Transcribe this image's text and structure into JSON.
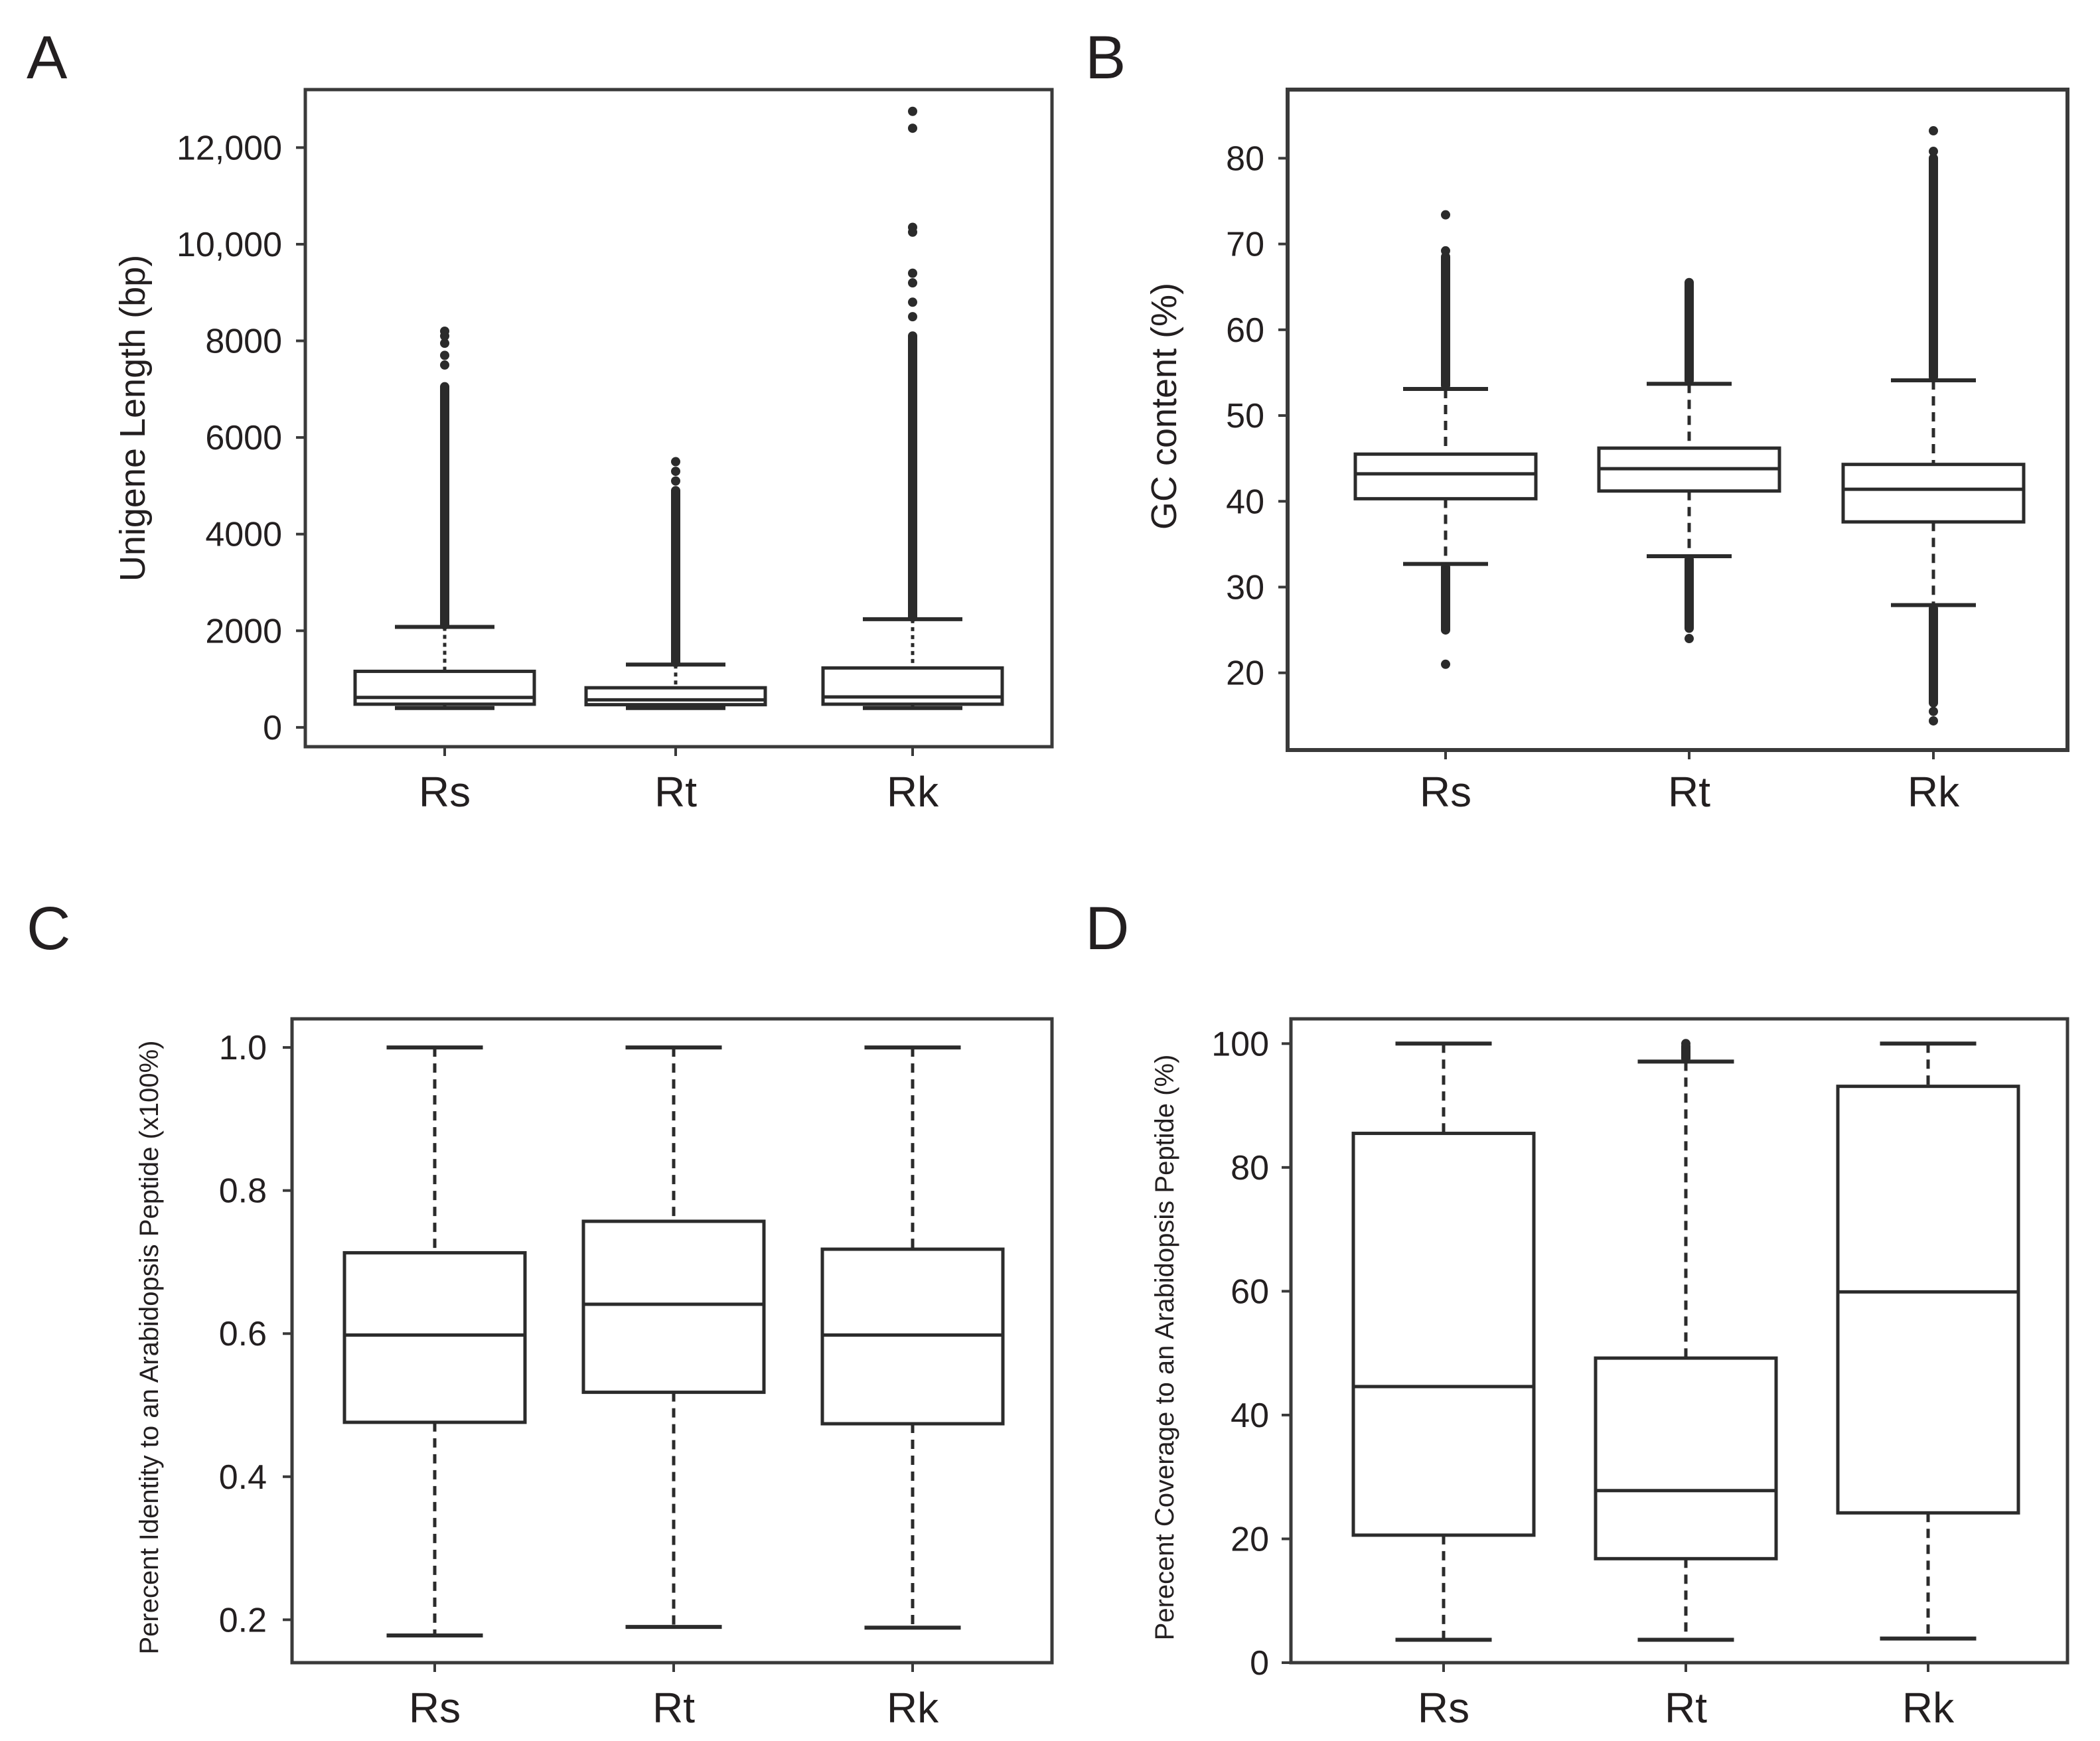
{
  "chart_data": [
    {
      "panel": "A",
      "type": "box",
      "title": "",
      "xlabel": "",
      "ylabel": "Unigene Length (bp)",
      "ylim": [
        -400,
        13200
      ],
      "yticks": [
        0,
        2000,
        4000,
        6000,
        8000,
        10000,
        12000
      ],
      "ytick_labels": [
        "0",
        "2000",
        "4000",
        "6000",
        "8000",
        "10,000",
        "12,000"
      ],
      "categories": [
        "Rs",
        "Rt",
        "Rk"
      ],
      "boxes": [
        {
          "name": "Rs",
          "whisker_low": 400,
          "q1": 480,
          "median": 620,
          "q3": 1160,
          "whisker_high": 2080
        },
        {
          "name": "Rt",
          "whisker_low": 400,
          "q1": 470,
          "median": 570,
          "q3": 820,
          "whisker_high": 1300
        },
        {
          "name": "Rk",
          "whisker_low": 400,
          "q1": 480,
          "median": 630,
          "q3": 1230,
          "whisker_high": 2240
        }
      ],
      "outliers": [
        {
          "name": "Rs",
          "band": [
            2120,
            7050
          ],
          "points": [
            7500,
            7700,
            7950,
            8100,
            8200
          ]
        },
        {
          "name": "Rt",
          "band": [
            1340,
            4900
          ],
          "points": [
            5100,
            5300,
            5500
          ]
        },
        {
          "name": "Rk",
          "band": [
            2280,
            8100
          ],
          "points": [
            8500,
            8800,
            9200,
            9400,
            10250,
            10350,
            12400,
            12750
          ]
        }
      ]
    },
    {
      "panel": "B",
      "type": "box",
      "title": "",
      "xlabel": "",
      "ylabel": "GC content (%)",
      "ylim": [
        11,
        88
      ],
      "yticks": [
        20,
        30,
        40,
        50,
        60,
        70,
        80
      ],
      "ytick_labels": [
        "20",
        "30",
        "40",
        "50",
        "60",
        "70",
        "80"
      ],
      "categories": [
        "Rs",
        "Rt",
        "Rk"
      ],
      "boxes": [
        {
          "name": "Rs",
          "whisker_low": 32.7,
          "q1": 40.3,
          "median": 43.2,
          "q3": 45.5,
          "whisker_high": 53.1
        },
        {
          "name": "Rt",
          "whisker_low": 33.6,
          "q1": 41.2,
          "median": 43.8,
          "q3": 46.2,
          "whisker_high": 53.7
        },
        {
          "name": "Rk",
          "whisker_low": 27.9,
          "q1": 37.6,
          "median": 41.4,
          "q3": 44.3,
          "whisker_high": 54.1
        }
      ],
      "outliers": [
        {
          "name": "Rs",
          "bands": [
            [
              53.5,
              68.5
            ],
            [
              25,
              32.3
            ]
          ],
          "points": [
            69.2,
            73.4,
            21.0
          ]
        },
        {
          "name": "Rt",
          "bands": [
            [
              54.1,
              65.5
            ],
            [
              25.2,
              33.2
            ]
          ],
          "points": [
            24.0
          ]
        },
        {
          "name": "Rk",
          "bands": [
            [
              54.5,
              80.0
            ],
            [
              16.5,
              27.5
            ]
          ],
          "points": [
            80.8,
            83.2,
            15.5,
            14.4
          ]
        }
      ]
    },
    {
      "panel": "C",
      "type": "box",
      "title": "",
      "xlabel": "",
      "ylabel": "Perecent Identity to an Arabidopsis Peptide (x100%)",
      "ylim": [
        0.14,
        1.04
      ],
      "yticks": [
        0.2,
        0.4,
        0.6,
        0.8,
        1.0
      ],
      "ytick_labels": [
        "0.2",
        "0.4",
        "0.6",
        "0.8",
        "1.0"
      ],
      "categories": [
        "Rs",
        "Rt",
        "Rk"
      ],
      "boxes": [
        {
          "name": "Rs",
          "whisker_low": 0.178,
          "q1": 0.476,
          "median": 0.598,
          "q3": 0.713,
          "whisker_high": 1.0
        },
        {
          "name": "Rt",
          "whisker_low": 0.19,
          "q1": 0.518,
          "median": 0.641,
          "q3": 0.757,
          "whisker_high": 1.0
        },
        {
          "name": "Rk",
          "whisker_low": 0.189,
          "q1": 0.474,
          "median": 0.598,
          "q3": 0.718,
          "whisker_high": 1.0
        }
      ],
      "outliers": []
    },
    {
      "panel": "D",
      "type": "box",
      "title": "",
      "xlabel": "",
      "ylabel": "Perecent Coverage to an Arabidopsis Peptide (%)",
      "ylim": [
        0,
        104
      ],
      "yticks": [
        0,
        20,
        40,
        60,
        80,
        100
      ],
      "ytick_labels": [
        "0",
        "20",
        "40",
        "60",
        "80",
        "100"
      ],
      "categories": [
        "Rs",
        "Rt",
        "Rk"
      ],
      "boxes": [
        {
          "name": "Rs",
          "whisker_low": 3.7,
          "q1": 20.6,
          "median": 44.6,
          "q3": 85.5,
          "whisker_high": 100
        },
        {
          "name": "Rt",
          "whisker_low": 3.7,
          "q1": 16.8,
          "median": 27.8,
          "q3": 49.2,
          "whisker_high": 97.1
        },
        {
          "name": "Rk",
          "whisker_low": 3.9,
          "q1": 24.2,
          "median": 59.9,
          "q3": 93.1,
          "whisker_high": 100
        }
      ],
      "outliers": [
        {
          "name": "Rt",
          "bands": [
            [
              97.6,
              99.6
            ]
          ],
          "points": [
            100.0
          ]
        }
      ]
    }
  ]
}
